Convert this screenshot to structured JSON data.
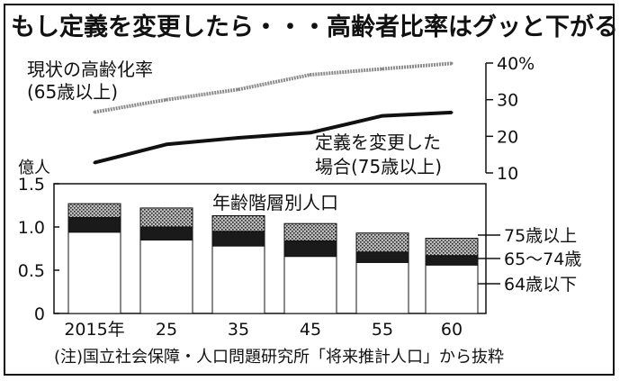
{
  "title": "もし定義を変更したら・・・高齢者比率はグッと下がる",
  "note": "(注)国立社会保障・人口問題研究所「将来推計人口」から抜粋",
  "chart_data": [
    {
      "type": "line",
      "x": [
        "2015年",
        "25",
        "35",
        "45",
        "55",
        "60"
      ],
      "series": [
        {
          "name": "現状の高齢化率(65歳以上)",
          "values": [
            26.6,
            30.0,
            32.8,
            36.8,
            38.4,
            39.9
          ]
        },
        {
          "name": "定義を変更した場合(75歳以上)",
          "values": [
            12.8,
            17.8,
            19.6,
            21.0,
            25.6,
            26.5
          ]
        }
      ],
      "ylim": [
        10,
        40
      ],
      "yticks": [
        "40%",
        "30",
        "20",
        "10"
      ],
      "line_labels": {
        "current": [
          "現状の高齢化率",
          "(65歳以上)"
        ],
        "changed": [
          "定義を変更した",
          "場合(75歳以上)"
        ]
      }
    },
    {
      "type": "bar",
      "stacked": true,
      "title": "年齢階層別人口",
      "ylabel": "億人",
      "categories": [
        "2015年",
        "25",
        "35",
        "45",
        "55",
        "60"
      ],
      "series": [
        {
          "name": "64歳以下",
          "values": [
            0.94,
            0.85,
            0.78,
            0.66,
            0.59,
            0.56
          ]
        },
        {
          "name": "65〜74歳",
          "values": [
            0.17,
            0.15,
            0.17,
            0.18,
            0.12,
            0.11
          ]
        },
        {
          "name": "75歳以上",
          "values": [
            0.16,
            0.22,
            0.18,
            0.2,
            0.22,
            0.2
          ]
        }
      ],
      "ylim": [
        0,
        1.5
      ],
      "yticks": [
        "0",
        "0.5",
        "1.0",
        "1.5"
      ],
      "colors": {
        "64歳以下": "#ffffff",
        "65〜74歳": "#1a1a1a",
        "75歳以上": "#8a8a8a"
      }
    }
  ]
}
